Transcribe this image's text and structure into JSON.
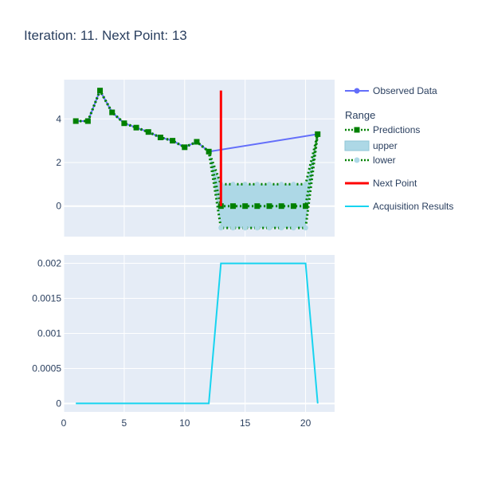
{
  "chart_data": {
    "type": "line",
    "title": "Iteration: 11. Next Point: 13",
    "legend": {
      "placement": "right",
      "group_title": "Range",
      "items": [
        {
          "label": "Observed Data",
          "color": "#636efa",
          "style": "line-marker"
        },
        {
          "label": "Predictions",
          "color": "#008000",
          "style": "dotted-square"
        },
        {
          "label": "upper",
          "color": "#add8e6",
          "style": "fill"
        },
        {
          "label": "lower",
          "color": "#add8e6",
          "style": "dotted-circle"
        },
        {
          "label": "Next Point",
          "color": "#ff0000",
          "style": "line"
        },
        {
          "label": "Acquisition Results",
          "color": "#17d4f0",
          "style": "line"
        }
      ]
    },
    "subplots": [
      {
        "xlim": [
          0,
          22.4
        ],
        "ylim": [
          -1.4,
          5.8
        ],
        "yticks": [
          0,
          2,
          4
        ],
        "ytick_labels": [
          "0",
          "2",
          "4"
        ],
        "xticks": [
          0,
          5,
          10,
          15,
          20
        ],
        "series": [
          {
            "name": "Observed Data",
            "color": "#636efa",
            "x": [
              1,
              2,
              3,
              4,
              5,
              6,
              7,
              8,
              9,
              10,
              11,
              12,
              21
            ],
            "y": [
              3.9,
              3.9,
              5.3,
              4.3,
              3.8,
              3.6,
              3.4,
              3.15,
              3.0,
              2.7,
              2.95,
              2.5,
              3.3
            ]
          },
          {
            "name": "Predictions",
            "color": "#008000",
            "x": [
              1,
              2,
              3,
              4,
              5,
              6,
              7,
              8,
              9,
              10,
              11,
              12,
              13,
              14,
              15,
              16,
              17,
              18,
              19,
              20,
              21
            ],
            "y": [
              3.9,
              3.9,
              5.3,
              4.3,
              3.8,
              3.6,
              3.4,
              3.15,
              3.0,
              2.7,
              2.95,
              2.5,
              0,
              0,
              0,
              0,
              0,
              0,
              0,
              0,
              3.3
            ]
          },
          {
            "name": "upper",
            "color": "#008000",
            "x": [
              1,
              2,
              3,
              4,
              5,
              6,
              7,
              8,
              9,
              10,
              11,
              12,
              13,
              14,
              15,
              16,
              17,
              18,
              19,
              20,
              21
            ],
            "y": [
              3.9,
              3.9,
              5.3,
              4.3,
              3.8,
              3.6,
              3.4,
              3.15,
              3.0,
              2.7,
              2.95,
              2.5,
              1,
              1,
              1,
              1,
              1,
              1,
              1,
              1,
              3.3
            ]
          },
          {
            "name": "lower",
            "color": "#add8e6",
            "x": [
              1,
              2,
              3,
              4,
              5,
              6,
              7,
              8,
              9,
              10,
              11,
              12,
              13,
              14,
              15,
              16,
              17,
              18,
              19,
              20,
              21
            ],
            "y": [
              3.9,
              3.9,
              5.3,
              4.3,
              3.8,
              3.6,
              3.4,
              3.15,
              3.0,
              2.7,
              2.95,
              2.5,
              -1,
              -1,
              -1,
              -1,
              -1,
              -1,
              -1,
              -1,
              3.3
            ]
          },
          {
            "name": "Next Point",
            "color": "#ff0000",
            "x": [
              13,
              13
            ],
            "y": [
              0,
              5.3
            ]
          }
        ]
      },
      {
        "xlim": [
          0,
          22.4
        ],
        "ylim": [
          -0.00012,
          0.00212
        ],
        "yticks": [
          0,
          0.0005,
          0.001,
          0.0015,
          0.002
        ],
        "ytick_labels": [
          "0",
          "0.0005",
          "0.001",
          "0.0015",
          "0.002"
        ],
        "xticks": [
          0,
          5,
          10,
          15,
          20
        ],
        "xtick_labels": [
          "0",
          "5",
          "10",
          "15",
          "20"
        ],
        "series": [
          {
            "name": "Acquisition Results",
            "color": "#17d4f0",
            "x": [
              1,
              12,
              13,
              20,
              21
            ],
            "y": [
              0,
              0,
              0.002,
              0.002,
              0
            ]
          }
        ]
      }
    ]
  }
}
